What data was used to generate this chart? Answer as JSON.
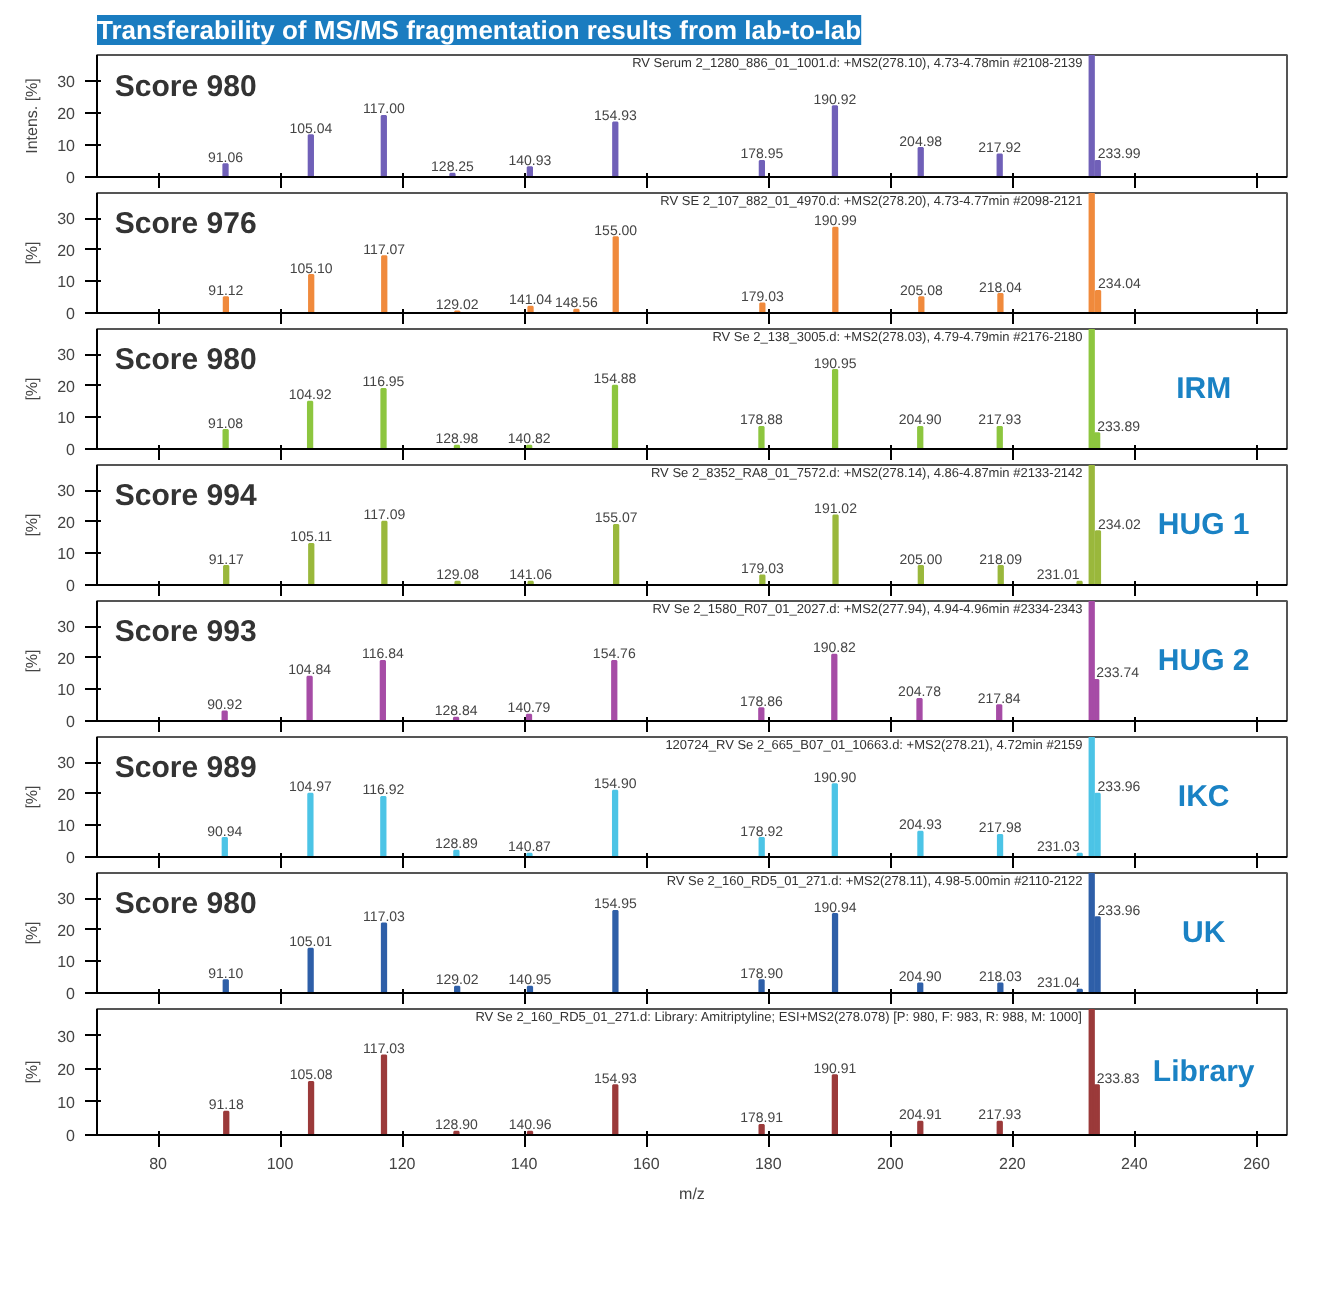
{
  "chart_data": [
    {
      "type": "bar",
      "title": "Transferability of MS/MS fragmentation results from lab-to-lab",
      "ylabel": "Intens. [%]",
      "xlim": [
        70,
        265
      ],
      "ylim": [
        0,
        38
      ],
      "xticks": [
        80,
        100,
        120,
        140,
        160,
        180,
        200,
        220,
        240,
        260
      ],
      "yticks": [
        0,
        10,
        20,
        30
      ],
      "tick_labels": "y",
      "grid": false,
      "x": [
        91.06,
        105.04,
        117.0,
        128.25,
        140.93,
        154.93,
        178.95,
        190.92,
        204.98,
        217.92,
        233.0,
        233.99
      ],
      "series": [
        {
          "color": "#7060b8",
          "values": [
            4,
            13,
            19,
            1,
            3,
            17,
            5,
            22,
            9,
            7,
            38,
            5
          ]
        }
      ],
      "value_labels": [
        "91.06",
        "105.04",
        "117.00",
        "128.25",
        "140.93",
        "154.93",
        "178.95",
        "190.92",
        "204.98",
        "217.92",
        null,
        "233.99"
      ],
      "annotations": [
        "RV Serum 2_1280_886_01_1001.d: +MS2(278.10), 4.73-4.78min #2108-2139",
        "Score 980"
      ]
    },
    {
      "type": "bar",
      "ylabel": "[%]",
      "xlim": [
        70,
        265
      ],
      "ylim": [
        0,
        38
      ],
      "xticks": [
        80,
        100,
        120,
        140,
        160,
        180,
        200,
        220,
        240,
        260
      ],
      "yticks": [
        0,
        10,
        20,
        30
      ],
      "tick_labels": "y",
      "grid": false,
      "x": [
        91.12,
        105.1,
        117.07,
        129.02,
        141.04,
        148.56,
        155.0,
        179.03,
        190.99,
        205.08,
        218.04,
        233.0,
        234.04
      ],
      "series": [
        {
          "color": "#f08a3c",
          "values": [
            5,
            12,
            18,
            0.5,
            2,
            1,
            24,
            3,
            27,
            5,
            6,
            38,
            7
          ]
        }
      ],
      "value_labels": [
        "91.12",
        "105.10",
        "117.07",
        "129.02",
        "141.04",
        "148.56",
        "155.00",
        "179.03",
        "190.99",
        "205.08",
        "218.04",
        null,
        "234.04"
      ],
      "annotations": [
        "RV SE 2_107_882_01_4970.d: +MS2(278.20), 4.73-4.77min #2098-2121",
        "Score 976"
      ]
    },
    {
      "type": "bar",
      "ylabel": "[%]",
      "xlim": [
        70,
        265
      ],
      "ylim": [
        0,
        38
      ],
      "xticks": [
        80,
        100,
        120,
        140,
        160,
        180,
        200,
        220,
        240,
        260
      ],
      "yticks": [
        0,
        10,
        20,
        30
      ],
      "tick_labels": "y",
      "grid": false,
      "x": [
        91.08,
        104.92,
        116.95,
        128.98,
        140.82,
        154.88,
        178.88,
        190.95,
        204.9,
        217.93,
        233.0,
        233.89
      ],
      "series": [
        {
          "color": "#8dc63f",
          "values": [
            6,
            15,
            19,
            1,
            1,
            20,
            7,
            25,
            7,
            7,
            38,
            5
          ]
        }
      ],
      "value_labels": [
        "91.08",
        "104.92",
        "116.95",
        "128.98",
        "140.82",
        "154.88",
        "178.88",
        "190.95",
        "204.90",
        "217.93",
        null,
        "233.89"
      ],
      "annotations": [
        "RV Se 2_138_3005.d: +MS2(278.03), 4.79-4.79min #2176-2180",
        "Score 980",
        "IRM"
      ]
    },
    {
      "type": "bar",
      "ylabel": "[%]",
      "xlim": [
        70,
        265
      ],
      "ylim": [
        0,
        38
      ],
      "xticks": [
        80,
        100,
        120,
        140,
        160,
        180,
        200,
        220,
        240,
        260
      ],
      "yticks": [
        0,
        10,
        20,
        30
      ],
      "tick_labels": "y",
      "grid": false,
      "x": [
        91.17,
        105.11,
        117.09,
        129.08,
        141.06,
        155.07,
        179.03,
        191.02,
        205.0,
        218.09,
        231.01,
        233.0,
        234.02
      ],
      "series": [
        {
          "color": "#9ab83c",
          "values": [
            6,
            13,
            20,
            1,
            1,
            19,
            3,
            22,
            6,
            6,
            1,
            38,
            17
          ]
        }
      ],
      "value_labels": [
        "91.17",
        "105.11",
        "117.09",
        "129.08",
        "141.06",
        "155.07",
        "179.03",
        "191.02",
        "205.00",
        "218.09",
        "231.01",
        null,
        "234.02"
      ],
      "annotations": [
        "RV Se 2_8352_RA8_01_7572.d: +MS2(278.14), 4.86-4.87min #2133-2142",
        "Score 994",
        "HUG 1"
      ]
    },
    {
      "type": "bar",
      "ylabel": "[%]",
      "xlim": [
        70,
        265
      ],
      "ylim": [
        0,
        38
      ],
      "xticks": [
        80,
        100,
        120,
        140,
        160,
        180,
        200,
        220,
        240,
        260
      ],
      "yticks": [
        0,
        10,
        20,
        30
      ],
      "tick_labels": "y",
      "grid": false,
      "x": [
        90.92,
        104.84,
        116.84,
        128.84,
        140.79,
        154.76,
        178.86,
        190.82,
        204.78,
        217.84,
        233.0,
        233.74
      ],
      "series": [
        {
          "color": "#a64ca6",
          "values": [
            3,
            14,
            19,
            1,
            2,
            19,
            4,
            21,
            7,
            5,
            38,
            13
          ]
        }
      ],
      "value_labels": [
        "90.92",
        "104.84",
        "116.84",
        "128.84",
        "140.79",
        "154.76",
        "178.86",
        "190.82",
        "204.78",
        "217.84",
        null,
        "233.74"
      ],
      "annotations": [
        "RV Se 2_1580_R07_01_2027.d: +MS2(277.94), 4.94-4.96min #2334-2343",
        "Score 993",
        "HUG 2"
      ]
    },
    {
      "type": "bar",
      "ylabel": "[%]",
      "xlim": [
        70,
        265
      ],
      "ylim": [
        0,
        38
      ],
      "xticks": [
        80,
        100,
        120,
        140,
        160,
        180,
        200,
        220,
        240,
        260
      ],
      "yticks": [
        0,
        10,
        20,
        30
      ],
      "tick_labels": "y",
      "grid": false,
      "x": [
        90.94,
        104.97,
        116.92,
        128.89,
        140.87,
        154.9,
        178.92,
        190.9,
        204.93,
        217.98,
        231.03,
        233.0,
        233.96
      ],
      "series": [
        {
          "color": "#4cc4e6",
          "values": [
            6,
            20,
            19,
            2,
            1,
            21,
            6,
            23,
            8,
            7,
            1,
            38,
            20
          ]
        }
      ],
      "value_labels": [
        "90.94",
        "104.97",
        "116.92",
        "128.89",
        "140.87",
        "154.90",
        "178.92",
        "190.90",
        "204.93",
        "217.98",
        "231.03",
        null,
        "233.96"
      ],
      "annotations": [
        "120724_RV Se 2_665_B07_01_10663.d: +MS2(278.21), 4.72min #2159",
        "Score 989",
        "IKC"
      ]
    },
    {
      "type": "bar",
      "ylabel": "[%]",
      "xlim": [
        70,
        265
      ],
      "ylim": [
        0,
        38
      ],
      "xticks": [
        80,
        100,
        120,
        140,
        160,
        180,
        200,
        220,
        240,
        260
      ],
      "yticks": [
        0,
        10,
        20,
        30
      ],
      "tick_labels": "y",
      "grid": false,
      "x": [
        91.1,
        105.01,
        117.03,
        129.02,
        140.95,
        154.95,
        178.9,
        190.94,
        204.9,
        218.03,
        231.04,
        233.0,
        233.96
      ],
      "series": [
        {
          "color": "#2e5fa8",
          "values": [
            4,
            14,
            22,
            2,
            2,
            26,
            4,
            25,
            3,
            3,
            1,
            38,
            24
          ]
        }
      ],
      "value_labels": [
        "91.10",
        "105.01",
        "117.03",
        "129.02",
        "140.95",
        "154.95",
        "178.90",
        "190.94",
        "204.90",
        "218.03",
        "231.04",
        null,
        "233.96"
      ],
      "annotations": [
        "RV Se 2_160_RD5_01_271.d: +MS2(278.11), 4.98-5.00min #2110-2122",
        "Score 980",
        "UK"
      ]
    },
    {
      "type": "bar",
      "ylabel": "[%]",
      "xlabel": "m/z",
      "xlim": [
        70,
        265
      ],
      "ylim": [
        0,
        38
      ],
      "xticks": [
        80,
        100,
        120,
        140,
        160,
        180,
        200,
        220,
        240,
        260
      ],
      "yticks": [
        0,
        10,
        20,
        30
      ],
      "grid": false,
      "x": [
        91.18,
        105.08,
        117.03,
        128.9,
        140.96,
        154.93,
        178.91,
        190.91,
        204.91,
        217.93,
        233.0,
        233.83
      ],
      "series": [
        {
          "color": "#9b3a3a",
          "values": [
            7,
            16,
            24,
            1,
            1,
            15,
            3,
            18,
            4,
            4,
            38,
            15
          ]
        }
      ],
      "value_labels": [
        "91.18",
        "105.08",
        "117.03",
        "128.90",
        "140.96",
        "154.93",
        "178.91",
        "190.91",
        "204.91",
        "217.93",
        null,
        "233.83"
      ],
      "annotations": [
        "RV Se 2_160_RD5_01_271.d: Library: Amitriptyline; ESI+MS2(278.078) [P: 980, F: 983, R: 988, M: 1000]",
        null,
        "Library"
      ]
    }
  ]
}
